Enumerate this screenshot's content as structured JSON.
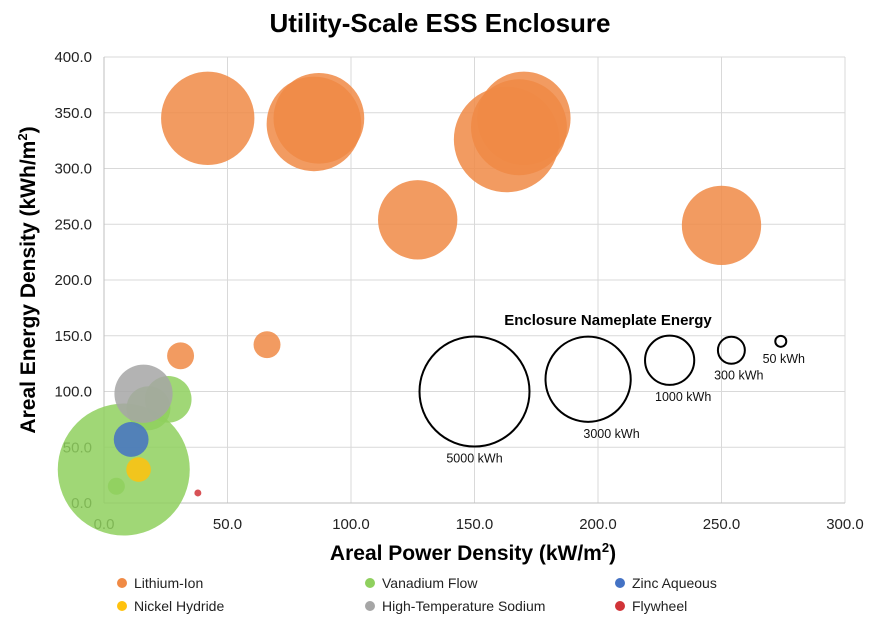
{
  "chart_data": {
    "type": "bubble",
    "title": "Utility-Scale ESS Enclosure",
    "xlabel": "Areal Power Density (kW/m",
    "xlabel_sup": "2",
    "xlabel_end": ")",
    "ylabel": "Areal Energy Density (kWh/m",
    "ylabel_sup": "2",
    "ylabel_end": ")",
    "xlim": [
      0,
      300
    ],
    "ylim": [
      0,
      400
    ],
    "xticks": [
      "0.0",
      "50.0",
      "100.0",
      "150.0",
      "200.0",
      "250.0",
      "300.0"
    ],
    "yticks": [
      "0.0",
      "50.0",
      "100.0",
      "150.0",
      "200.0",
      "250.0",
      "300.0",
      "350.0",
      "400.0"
    ],
    "grid": true,
    "legend_position": "bottom",
    "series": [
      {
        "name": "Lithium-Ion",
        "color": "#F08A45",
        "points": [
          {
            "x": 42,
            "y": 345,
            "energy": 3600
          },
          {
            "x": 85,
            "y": 340,
            "energy": 3700
          },
          {
            "x": 87,
            "y": 345,
            "energy": 3400
          },
          {
            "x": 127,
            "y": 254,
            "energy": 2600
          },
          {
            "x": 163,
            "y": 326,
            "energy": 4600
          },
          {
            "x": 170,
            "y": 345,
            "energy": 3600
          },
          {
            "x": 168,
            "y": 337,
            "energy": 3800
          },
          {
            "x": 250,
            "y": 249,
            "energy": 2600
          },
          {
            "x": 31,
            "y": 132,
            "energy": 300
          },
          {
            "x": 66,
            "y": 142,
            "energy": 300
          }
        ]
      },
      {
        "name": "Vanadium Flow",
        "color": "#8FD05E",
        "points": [
          {
            "x": 8,
            "y": 30,
            "energy": 7200
          },
          {
            "x": 26,
            "y": 93,
            "energy": 900
          },
          {
            "x": 18,
            "y": 85,
            "energy": 800
          },
          {
            "x": 5,
            "y": 15,
            "energy": 120
          }
        ]
      },
      {
        "name": "Zinc Aqueous",
        "color": "#4472C4",
        "points": [
          {
            "x": 11,
            "y": 57,
            "energy": 500
          }
        ]
      },
      {
        "name": "Nickel Hydride",
        "color": "#FFC20E",
        "points": [
          {
            "x": 14,
            "y": 30,
            "energy": 250
          }
        ]
      },
      {
        "name": "High-Temperature Sodium",
        "color": "#A6A6A6",
        "points": [
          {
            "x": 16,
            "y": 98,
            "energy": 1400
          }
        ]
      },
      {
        "name": "Flywheel",
        "color": "#D13438",
        "points": [
          {
            "x": 38,
            "y": 9,
            "energy": 20
          }
        ]
      }
    ],
    "size_legend": {
      "title": "Enclosure Nameplate Energy",
      "items": [
        {
          "label": "5000 kWh",
          "energy": 5000,
          "x": 150,
          "y": 100
        },
        {
          "label": "3000 kWh",
          "energy": 3000,
          "x": 196,
          "y": 111
        },
        {
          "label": "1000 kWh",
          "energy": 1000,
          "x": 229,
          "y": 128
        },
        {
          "label": "300 kWh",
          "energy": 300,
          "x": 254,
          "y": 137
        },
        {
          "label": "50 kWh",
          "energy": 50,
          "x": 274,
          "y": 145
        }
      ]
    }
  }
}
